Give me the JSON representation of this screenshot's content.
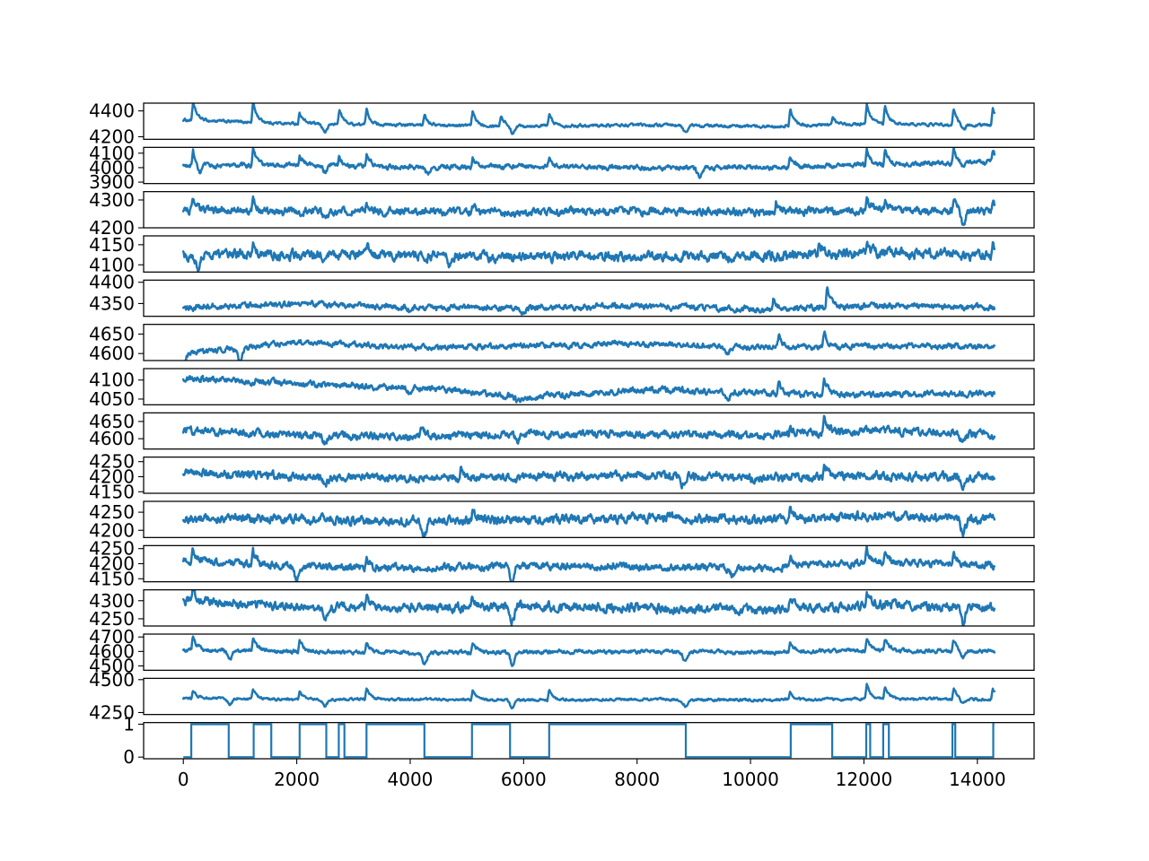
{
  "chart_data": {
    "type": "line",
    "layout": "15 vertically stacked subplots sharing the x axis",
    "color": "#1f77b4",
    "x_range": [
      0,
      14300
    ],
    "xlim": [
      -700,
      15000
    ],
    "xticks": [
      0,
      2000,
      4000,
      6000,
      8000,
      10000,
      12000,
      14000
    ],
    "xtick_labels": [
      "0",
      "2000",
      "4000",
      "6000",
      "8000",
      "10000",
      "12000",
      "14000"
    ],
    "grid": false,
    "legend": "none",
    "subplots": [
      {
        "ylim": [
          4180,
          4460
        ],
        "yticks": [
          4200,
          4400
        ],
        "ytick_labels": [
          "4200",
          "4400"
        ],
        "baseline": 4290,
        "noise": 8,
        "trend": [
          4330,
          4300,
          4290,
          4285,
          4290,
          4280,
          4300,
          4290
        ],
        "events": [
          [
            170,
            140
          ],
          [
            1230,
            160
          ],
          [
            2050,
            90
          ],
          [
            2750,
            120
          ],
          [
            3230,
            120
          ],
          [
            4250,
            90
          ],
          [
            5100,
            110
          ],
          [
            5600,
            80
          ],
          [
            6450,
            90
          ],
          [
            10700,
            130
          ],
          [
            11450,
            60
          ],
          [
            12050,
            150
          ],
          [
            12370,
            140
          ],
          [
            13580,
            130
          ],
          [
            14270,
            140
          ]
        ],
        "dips": [
          [
            2500,
            60
          ],
          [
            5800,
            60
          ],
          [
            8850,
            50
          ],
          [
            13750,
            50
          ]
        ]
      },
      {
        "ylim": [
          3890,
          4140
        ],
        "yticks": [
          3900,
          4000,
          4100
        ],
        "ytick_labels": [
          "3900",
          "4000",
          "4100"
        ],
        "baseline": 4005,
        "noise": 12,
        "trend": [
          4010,
          4020,
          4000,
          4010,
          4000,
          4000,
          4020,
          4040
        ],
        "events": [
          [
            170,
            110
          ],
          [
            1230,
            110
          ],
          [
            2050,
            60
          ],
          [
            2750,
            70
          ],
          [
            3230,
            90
          ],
          [
            5100,
            60
          ],
          [
            6450,
            60
          ],
          [
            10700,
            80
          ],
          [
            12050,
            110
          ],
          [
            12370,
            100
          ],
          [
            13580,
            100
          ],
          [
            14270,
            80
          ]
        ],
        "dips": [
          [
            280,
            70
          ],
          [
            2500,
            50
          ],
          [
            4300,
            40
          ],
          [
            9100,
            60
          ],
          [
            13750,
            40
          ]
        ]
      },
      {
        "ylim": [
          4200,
          4330
        ],
        "yticks": [
          4200,
          4300
        ],
        "ytick_labels": [
          "4200",
          "4300"
        ],
        "baseline": 4263,
        "noise": 10,
        "trend": [
          4265,
          4260,
          4258,
          4255,
          4260,
          4255,
          4265,
          4258
        ],
        "events": [
          [
            170,
            30
          ],
          [
            1230,
            35
          ],
          [
            3230,
            30
          ],
          [
            5100,
            25
          ],
          [
            10450,
            50
          ],
          [
            12050,
            40
          ],
          [
            12370,
            35
          ],
          [
            13580,
            35
          ],
          [
            14270,
            35
          ]
        ],
        "dips": [
          [
            2500,
            30
          ],
          [
            13750,
            45
          ]
        ]
      },
      {
        "ylim": [
          4082,
          4172
        ],
        "yticks": [
          4100,
          4150
        ],
        "ytick_labels": [
          "4100",
          "4150"
        ],
        "baseline": 4125,
        "noise": 9,
        "trend": [
          4125,
          4125,
          4122,
          4120,
          4122,
          4120,
          4130,
          4125
        ],
        "events": [
          [
            1230,
            25
          ],
          [
            3230,
            25
          ],
          [
            11200,
            20
          ],
          [
            12050,
            25
          ],
          [
            14270,
            25
          ]
        ],
        "dips": [
          [
            250,
            30
          ],
          [
            2500,
            20
          ],
          [
            4700,
            20
          ]
        ]
      },
      {
        "ylim": [
          4320,
          4405
        ],
        "yticks": [
          4350,
          4400
        ],
        "ytick_labels": [
          "4350",
          "4400"
        ],
        "baseline": 4340,
        "noise": 5,
        "trend": [
          4340,
          4350,
          4340,
          4340,
          4345,
          4335,
          4345,
          4340
        ],
        "events": [
          [
            10400,
            25
          ],
          [
            11350,
            45
          ]
        ],
        "dips": [
          [
            4000,
            10
          ],
          [
            6000,
            10
          ]
        ]
      },
      {
        "ylim": [
          4582,
          4675
        ],
        "yticks": [
          4600,
          4650
        ],
        "ytick_labels": [
          "4600",
          "4650"
        ],
        "baseline": 4618,
        "noise": 5,
        "trend": [
          4600,
          4630,
          4615,
          4620,
          4625,
          4615,
          4620,
          4618
        ],
        "events": [
          [
            10500,
            30
          ],
          [
            11300,
            40
          ]
        ],
        "dips": [
          [
            0,
            25
          ],
          [
            1000,
            35
          ],
          [
            9600,
            15
          ]
        ]
      },
      {
        "ylim": [
          4035,
          4130
        ],
        "yticks": [
          4050,
          4100
        ],
        "ytick_labels": [
          "4050",
          "4100"
        ],
        "baseline": 4075,
        "noise": 6,
        "trend": [
          4105,
          4090,
          4080,
          4055,
          4075,
          4065,
          4060,
          4065
        ],
        "events": [
          [
            10500,
            30
          ],
          [
            11300,
            45
          ]
        ],
        "dips": [
          [
            4000,
            20
          ],
          [
            5900,
            15
          ],
          [
            9600,
            15
          ]
        ]
      },
      {
        "ylim": [
          4570,
          4675
        ],
        "yticks": [
          4600,
          4650
        ],
        "ytick_labels": [
          "4600",
          "4650"
        ],
        "baseline": 4610,
        "noise": 8,
        "trend": [
          4625,
          4610,
          4605,
          4615,
          4612,
          4610,
          4625,
          4610
        ],
        "events": [
          [
            4200,
            25
          ],
          [
            10700,
            25
          ],
          [
            11300,
            50
          ]
        ],
        "dips": [
          [
            2500,
            20
          ],
          [
            5900,
            15
          ],
          [
            13750,
            25
          ]
        ]
      },
      {
        "ylim": [
          4145,
          4265
        ],
        "yticks": [
          4150,
          4200,
          4250
        ],
        "ytick_labels": [
          "4150",
          "4200",
          "4250"
        ],
        "baseline": 4200,
        "noise": 10,
        "trend": [
          4215,
          4200,
          4195,
          4200,
          4205,
          4195,
          4205,
          4195
        ],
        "events": [
          [
            4900,
            35
          ],
          [
            11300,
            40
          ]
        ],
        "dips": [
          [
            2500,
            30
          ],
          [
            8800,
            30
          ],
          [
            13750,
            30
          ]
        ]
      },
      {
        "ylim": [
          4180,
          4280
        ],
        "yticks": [
          4200,
          4250
        ],
        "ytick_labels": [
          "4200",
          "4250"
        ],
        "baseline": 4232,
        "noise": 9,
        "trend": [
          4235,
          4230,
          4225,
          4230,
          4235,
          4230,
          4240,
          4230
        ],
        "events": [
          [
            5100,
            30
          ],
          [
            10700,
            30
          ]
        ],
        "dips": [
          [
            4250,
            35
          ],
          [
            13750,
            40
          ]
        ]
      },
      {
        "ylim": [
          4140,
          4260
        ],
        "yticks": [
          4150,
          4200,
          4250
        ],
        "ytick_labels": [
          "4150",
          "4200",
          "4250"
        ],
        "baseline": 4195,
        "noise": 9,
        "trend": [
          4210,
          4190,
          4185,
          4195,
          4190,
          4185,
          4205,
          4195
        ],
        "events": [
          [
            170,
            40
          ],
          [
            1230,
            40
          ],
          [
            3230,
            30
          ],
          [
            10700,
            35
          ],
          [
            12050,
            40
          ],
          [
            12370,
            35
          ],
          [
            13580,
            40
          ]
        ],
        "dips": [
          [
            2000,
            45
          ],
          [
            5800,
            55
          ],
          [
            9700,
            30
          ]
        ]
      },
      {
        "ylim": [
          4230,
          4330
        ],
        "yticks": [
          4250,
          4300
        ],
        "ytick_labels": [
          "4250",
          "4300"
        ],
        "baseline": 4282,
        "noise": 9,
        "trend": [
          4300,
          4285,
          4280,
          4285,
          4280,
          4275,
          4290,
          4280
        ],
        "events": [
          [
            170,
            35
          ],
          [
            3230,
            30
          ],
          [
            5100,
            30
          ],
          [
            10700,
            30
          ],
          [
            12050,
            35
          ]
        ],
        "dips": [
          [
            2500,
            40
          ],
          [
            5800,
            40
          ],
          [
            13750,
            45
          ]
        ]
      },
      {
        "ylim": [
          4470,
          4720
        ],
        "yticks": [
          4500,
          4600,
          4700
        ],
        "ytick_labels": [
          "4500",
          "4600",
          "4700"
        ],
        "baseline": 4600,
        "noise": 10,
        "trend": [
          4610,
          4600,
          4590,
          4600,
          4600,
          4595,
          4605,
          4600
        ],
        "events": [
          [
            170,
            100
          ],
          [
            1230,
            100
          ],
          [
            2050,
            90
          ],
          [
            3230,
            70
          ],
          [
            5100,
            70
          ],
          [
            10700,
            80
          ],
          [
            12050,
            90
          ],
          [
            12370,
            90
          ],
          [
            13580,
            80
          ]
        ],
        "dips": [
          [
            820,
            60
          ],
          [
            4250,
            80
          ],
          [
            5800,
            90
          ],
          [
            8850,
            60
          ],
          [
            13750,
            50
          ]
        ]
      },
      {
        "ylim": [
          4235,
          4510
        ],
        "yticks": [
          4250,
          4500
        ],
        "ytick_labels": [
          "4250",
          "4500"
        ],
        "baseline": 4355,
        "noise": 7,
        "trend": [
          4360,
          4350,
          4350,
          4345,
          4350,
          4345,
          4355,
          4350
        ],
        "events": [
          [
            170,
            60
          ],
          [
            1230,
            70
          ],
          [
            2050,
            60
          ],
          [
            3230,
            90
          ],
          [
            5100,
            80
          ],
          [
            6450,
            70
          ],
          [
            10700,
            60
          ],
          [
            12050,
            110
          ],
          [
            12370,
            100
          ],
          [
            13580,
            90
          ],
          [
            14270,
            90
          ]
        ],
        "dips": [
          [
            820,
            40
          ],
          [
            2500,
            50
          ],
          [
            5800,
            60
          ],
          [
            8850,
            50
          ],
          [
            13750,
            40
          ]
        ]
      },
      {
        "type": "step",
        "ylim": [
          -0.05,
          1.05
        ],
        "yticks": [
          0,
          1
        ],
        "ytick_labels": [
          "0",
          "1"
        ],
        "x_start": 0,
        "transitions": [
          [
            0,
            0
          ],
          [
            140,
            1
          ],
          [
            800,
            0
          ],
          [
            1240,
            1
          ],
          [
            1550,
            0
          ],
          [
            2050,
            1
          ],
          [
            2520,
            0
          ],
          [
            2740,
            1
          ],
          [
            2840,
            0
          ],
          [
            3230,
            1
          ],
          [
            4250,
            0
          ],
          [
            5090,
            1
          ],
          [
            5760,
            0
          ],
          [
            6450,
            1
          ],
          [
            8860,
            0
          ],
          [
            10710,
            1
          ],
          [
            11440,
            0
          ],
          [
            12040,
            1
          ],
          [
            12110,
            0
          ],
          [
            12340,
            1
          ],
          [
            12440,
            0
          ],
          [
            13560,
            1
          ],
          [
            13610,
            0
          ],
          [
            14280,
            1
          ]
        ],
        "x_end": 14300
      }
    ]
  }
}
